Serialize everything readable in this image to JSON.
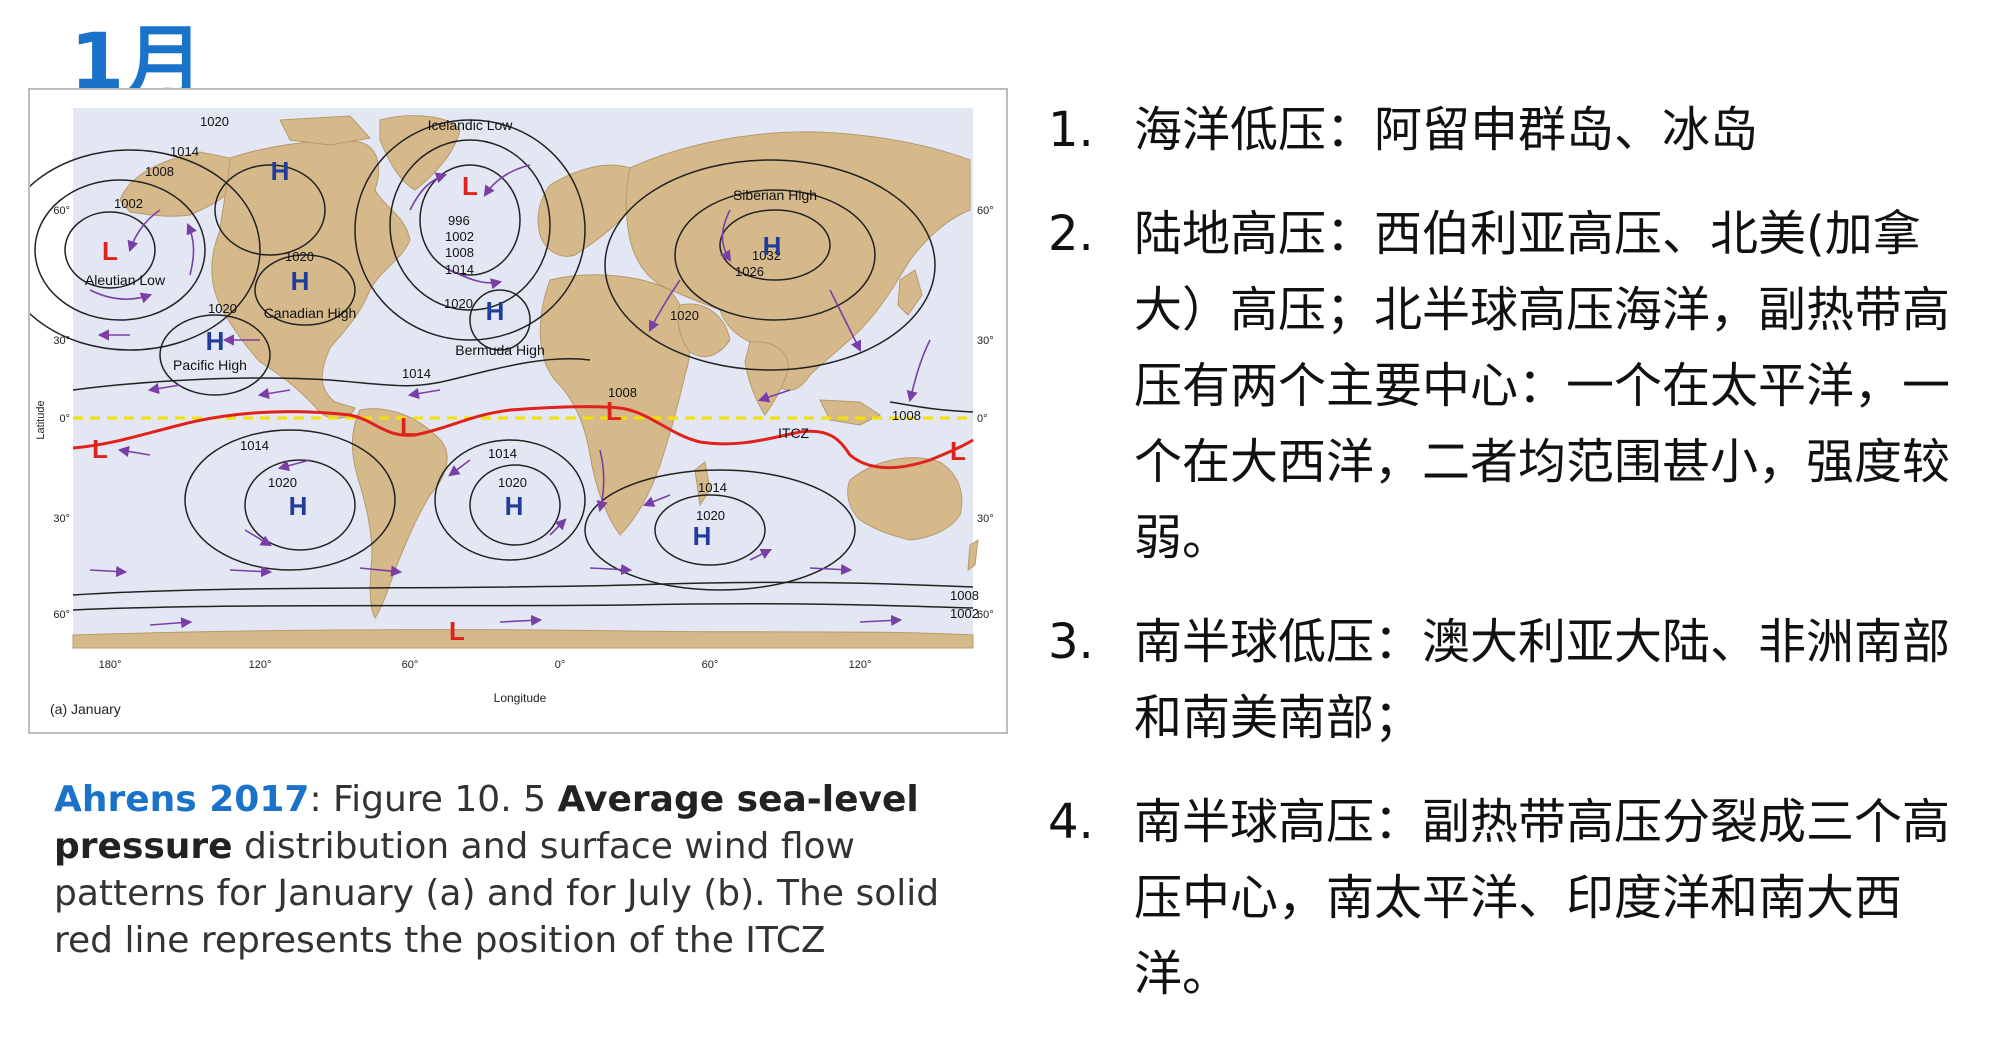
{
  "slide": {
    "title": "1月"
  },
  "map": {
    "panel_label": "(a) January",
    "x_axis_title": "Longitude",
    "y_axis_title": "Latitude",
    "lon_ticks": [
      "180°",
      "120°",
      "60°",
      "0°",
      "60°",
      "120°"
    ],
    "lat_ticks_left": [
      "60°",
      "30°",
      "0°",
      "30°",
      "60°"
    ],
    "lat_ticks_right": [
      "60°",
      "30°",
      "0°",
      "30°",
      "60°"
    ],
    "centers": [
      {
        "id": "aleutian-low",
        "symbol": "L",
        "type": "low",
        "name": "Aleutian Low"
      },
      {
        "id": "icelandic-low",
        "symbol": "L",
        "type": "low",
        "name": "Icelandic Low"
      },
      {
        "id": "canadian-high",
        "symbol": "H",
        "type": "high",
        "name": "Canadian High"
      },
      {
        "id": "north-canada-high",
        "symbol": "H",
        "type": "high",
        "name": ""
      },
      {
        "id": "pacific-high",
        "symbol": "H",
        "type": "high",
        "name": "Pacific High"
      },
      {
        "id": "bermuda-high",
        "symbol": "H",
        "type": "high",
        "name": "Bermuda High"
      },
      {
        "id": "siberian-high",
        "symbol": "H",
        "type": "high",
        "name": "Siberian High"
      },
      {
        "id": "south-pacific-high",
        "symbol": "H",
        "type": "high",
        "name": ""
      },
      {
        "id": "south-atlantic-high",
        "symbol": "H",
        "type": "high",
        "name": ""
      },
      {
        "id": "indian-ocean-high",
        "symbol": "H",
        "type": "high",
        "name": ""
      },
      {
        "id": "south-america-low",
        "symbol": "L",
        "type": "low",
        "name": ""
      },
      {
        "id": "africa-low",
        "symbol": "L",
        "type": "low",
        "name": ""
      },
      {
        "id": "australia-low",
        "symbol": "L",
        "type": "low",
        "name": ""
      },
      {
        "id": "pacific-equatorial-low",
        "symbol": "L",
        "type": "low",
        "name": ""
      },
      {
        "id": "southern-ocean-low",
        "symbol": "L",
        "type": "low",
        "name": ""
      }
    ],
    "isobar_labels": [
      "1020",
      "1014",
      "1008",
      "1002",
      "996",
      "1002",
      "1008",
      "1014",
      "1020",
      "1020",
      "1032",
      "1026",
      "1020",
      "1020",
      "1014",
      "1008",
      "1008",
      "1014",
      "1020",
      "1014",
      "1020",
      "1014",
      "1020",
      "1008",
      "1002"
    ],
    "itcz_label": "ITCZ",
    "colors": {
      "ocean": "#e3e7f4",
      "land": "#d6b98a",
      "isobar": "#222222",
      "itcz": "#e0221c",
      "equator": "#f2e200",
      "wind_arrow": "#7a3fa6",
      "high": "#1f3d99",
      "low": "#e0221c"
    }
  },
  "caption": {
    "author": "Ahrens 2017",
    "prefix": ": Figure 10. 5 ",
    "bold": "Average sea-level pressure",
    "rest": " distribution and surface wind flow patterns for January (a) and for July (b). The solid red line represents the position of the ITCZ"
  },
  "points": [
    {
      "num": "1.",
      "text": "海洋低压：阿留申群岛、冰岛"
    },
    {
      "num": "2.",
      "text": "陆地高压：西伯利亚高压、北美(加拿大）高压；北半球高压海洋，副热带高压有两个主要中心：一个在太平洋，一个在大西洋，二者均范围甚小，强度较弱。"
    },
    {
      "num": "3.",
      "text": "南半球低压：澳大利亚大陆、非洲南部和南美南部；"
    },
    {
      "num": "4.",
      "text": "南半球高压：副热带高压分裂成三个高压中心，南太平洋、印度洋和南大西洋。"
    }
  ]
}
